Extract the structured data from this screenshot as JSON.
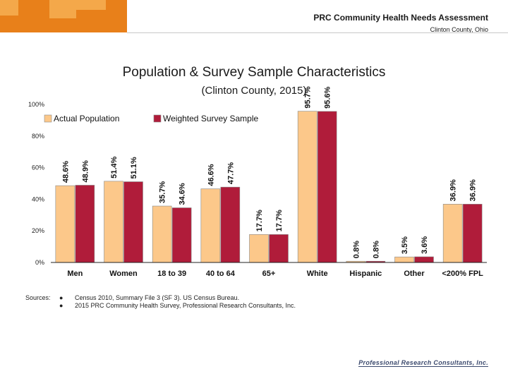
{
  "header": {
    "title": "PRC Community Health Needs Assessment",
    "location": "Clinton County, Ohio",
    "brand_color": "#e8801a"
  },
  "chart_title": "Population & Survey Sample Characteristics",
  "chart_subtitle": "(Clinton County, 2015)",
  "chart_data": {
    "type": "bar",
    "title": "Population & Survey Sample Characteristics",
    "subtitle": "(Clinton County, 2015)",
    "categories": [
      "Men",
      "Women",
      "18 to 39",
      "40 to 64",
      "65+",
      "White",
      "Hispanic",
      "Other",
      "<200% FPL"
    ],
    "series": [
      {
        "name": "Actual Population",
        "color": "#fcc88a",
        "values": [
          48.6,
          51.4,
          35.7,
          46.6,
          17.7,
          95.7,
          0.8,
          3.5,
          36.9
        ],
        "labels": [
          "48.6%",
          "51.4%",
          "35.7%",
          "46.6%",
          "17.7%",
          "95.7%",
          "0.8%",
          "3.5%",
          "36.9%"
        ]
      },
      {
        "name": "Weighted Survey Sample",
        "color": "#b01c3a",
        "values": [
          48.9,
          51.1,
          34.6,
          47.7,
          17.7,
          95.6,
          0.8,
          3.6,
          36.9
        ],
        "labels": [
          "48.9%",
          "51.1%",
          "34.6%",
          "47.7%",
          "17.7%",
          "95.6%",
          "0.8%",
          "3.6%",
          "36.9%"
        ]
      }
    ],
    "ylim": [
      0,
      100
    ],
    "yticks": [
      0,
      20,
      40,
      60,
      80,
      100
    ],
    "ytick_labels": [
      "0%",
      "20%",
      "40%",
      "60%",
      "80%",
      "100%"
    ],
    "legend_position": "top-left",
    "grid": false
  },
  "sources": {
    "label": "Sources:",
    "items": [
      "Census 2010, Summary File 3 (SF 3).  US Census Bureau.",
      "2015 PRC Community Health Survey, Professional Research Consultants, Inc."
    ]
  },
  "footer": {
    "logo_text": "Professional Research Consultants, Inc."
  }
}
